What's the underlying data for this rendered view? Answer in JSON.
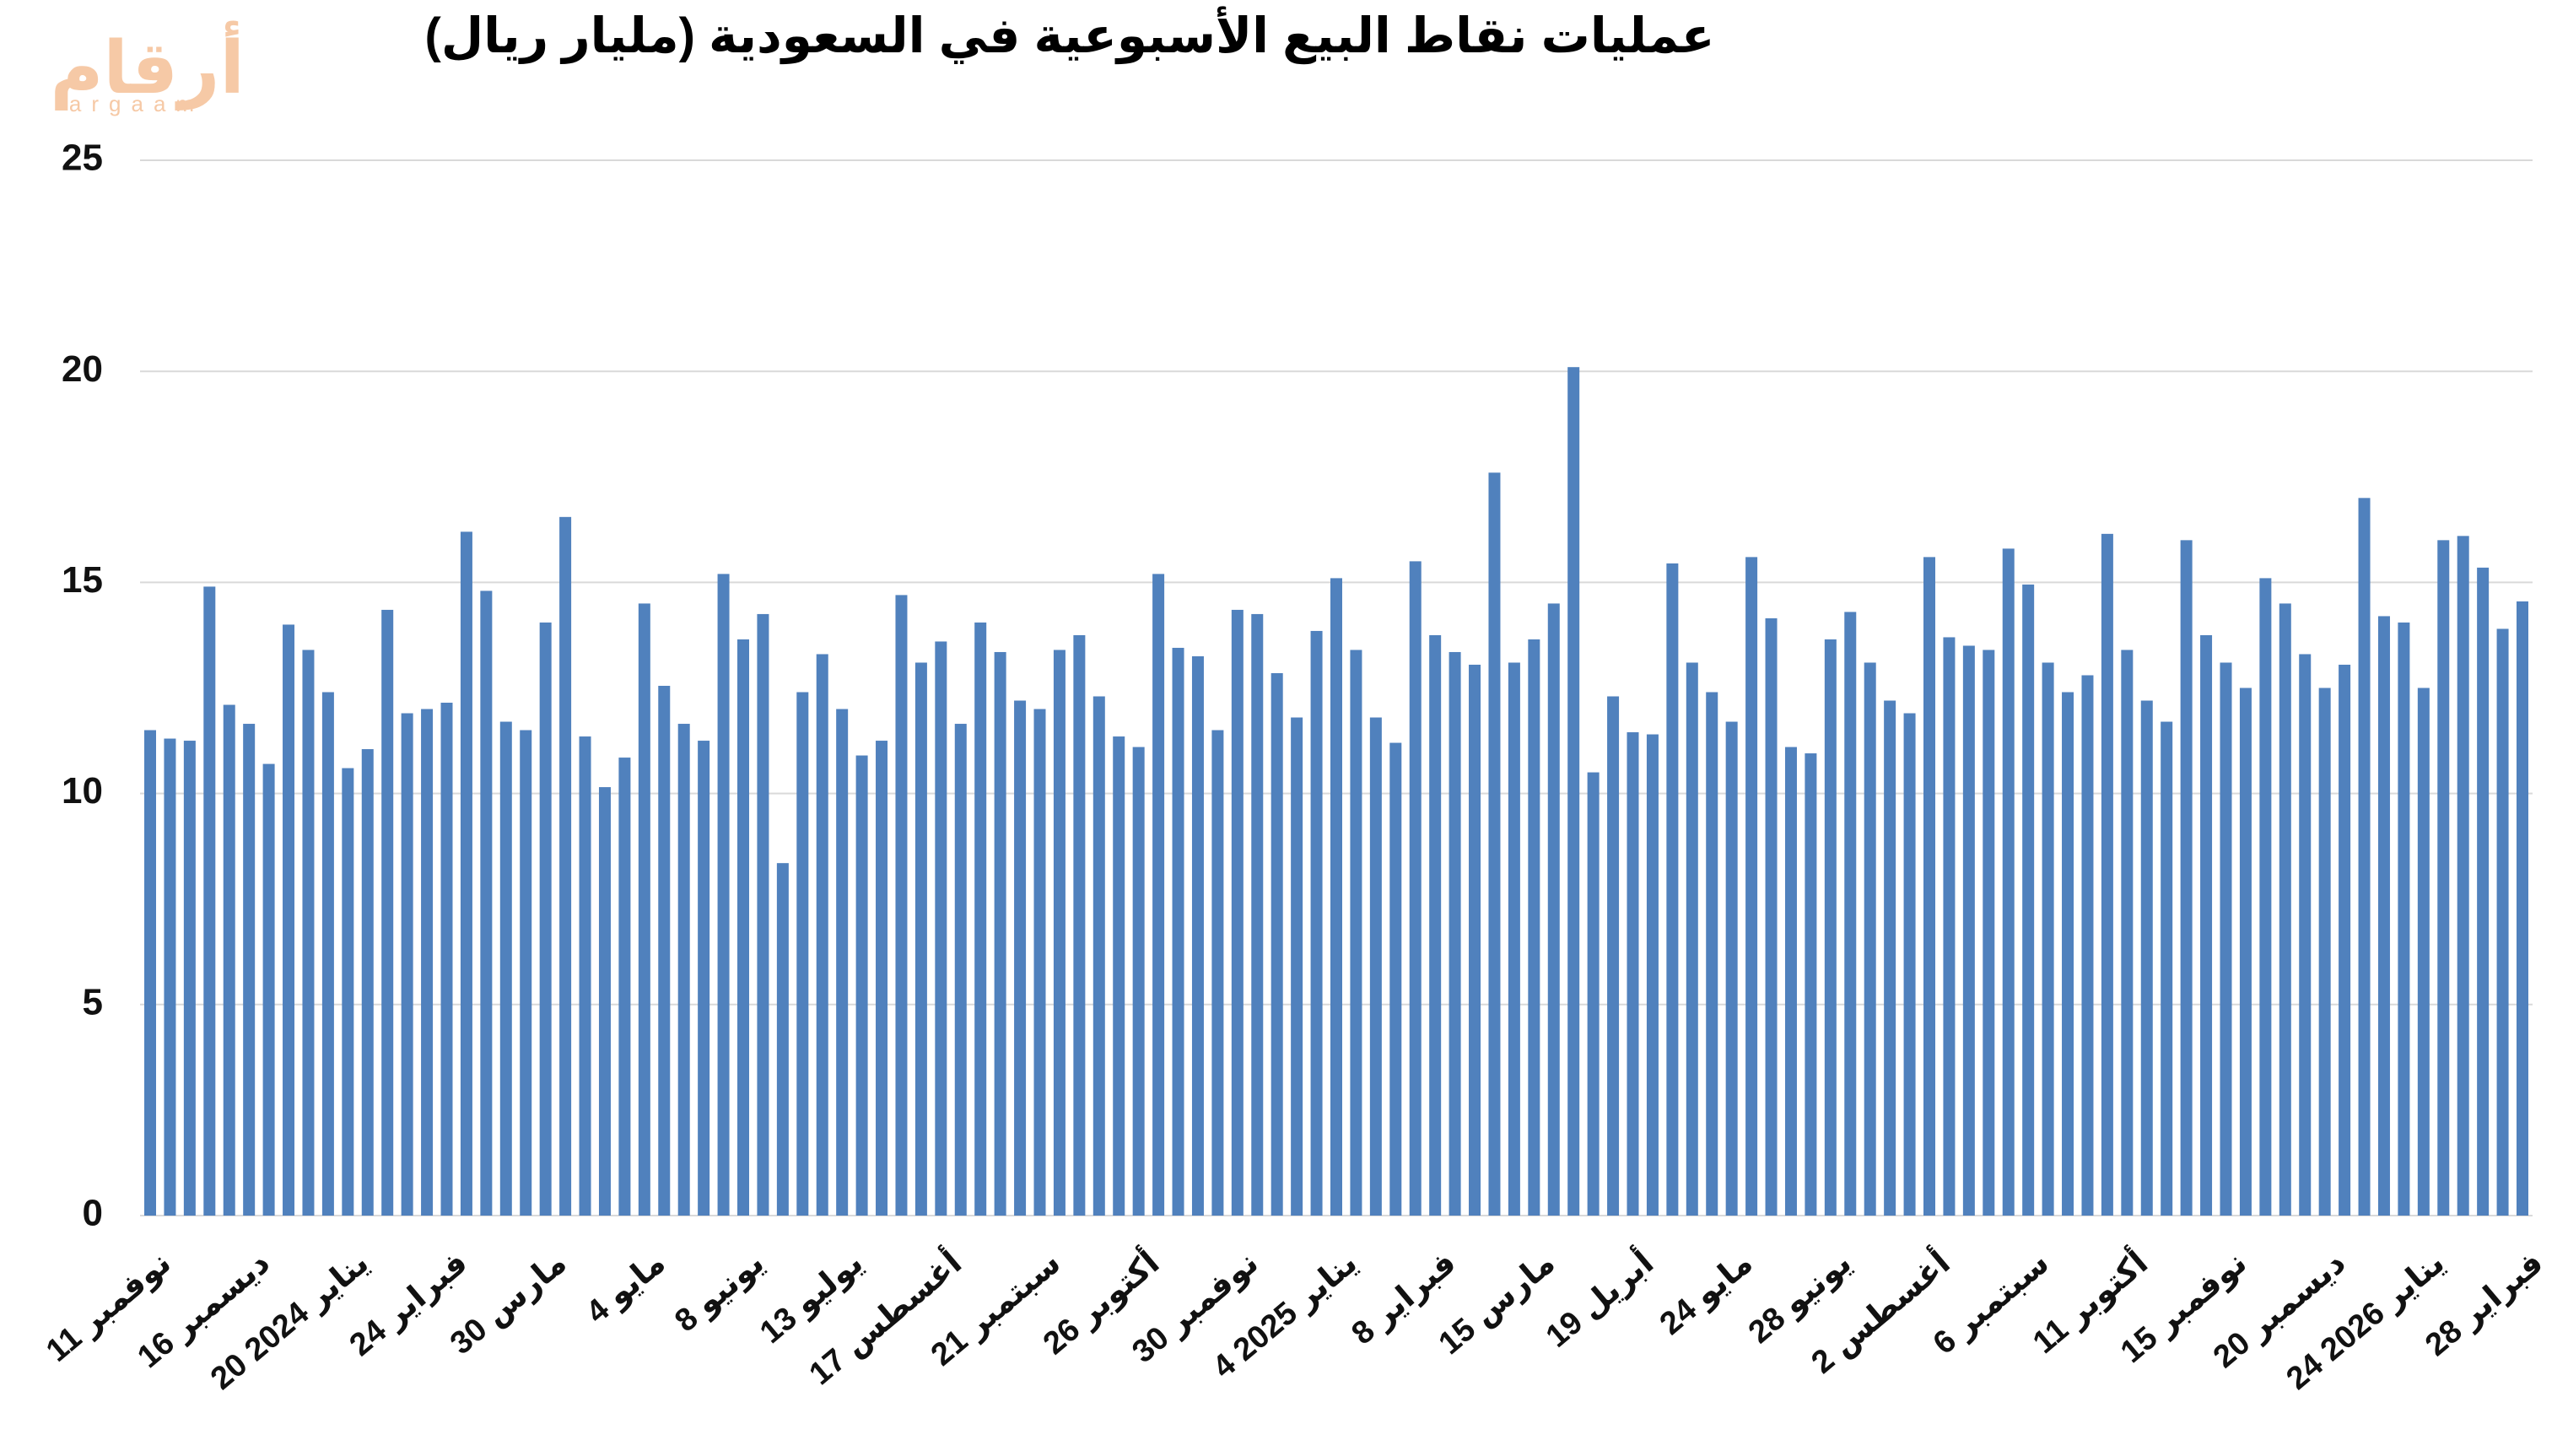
{
  "logo": {
    "text": "أرقام",
    "sub": "argaam"
  },
  "chart_data": {
    "type": "bar",
    "title": "عمليات نقاط البيع الأسبوعية في السعودية (مليار ريال)",
    "categories": [
      "11 نوفمبر",
      null,
      null,
      null,
      null,
      "16 ديسمبر",
      null,
      null,
      null,
      null,
      "20 يناير 2024",
      null,
      null,
      null,
      null,
      "24 فبراير",
      null,
      null,
      null,
      null,
      "30 مارس",
      null,
      null,
      null,
      null,
      "4 مايو",
      null,
      null,
      null,
      null,
      "8 يونيو",
      null,
      null,
      null,
      null,
      "13 يوليو",
      null,
      null,
      null,
      null,
      "17 أغسطس",
      null,
      null,
      null,
      null,
      "21 سبتمبر",
      null,
      null,
      null,
      null,
      "26 أكتوبر",
      null,
      null,
      null,
      null,
      "30 نوفمبر",
      null,
      null,
      null,
      null,
      "4 يناير 2025",
      null,
      null,
      null,
      null,
      "8 فبراير",
      null,
      null,
      null,
      null,
      "15 مارس",
      null,
      null,
      null,
      null,
      "19 أبريل",
      null,
      null,
      null,
      null,
      "24 مايو",
      null,
      null,
      null,
      null,
      "28 يونيو",
      null,
      null,
      null,
      null,
      "2 أغسطس",
      null,
      null,
      null,
      null,
      "6 سبتمبر",
      null,
      null,
      null,
      null,
      "11 أكتوبر",
      null,
      null,
      null,
      null,
      "15 نوفمبر",
      null,
      null,
      null,
      null,
      "20 ديسمبر",
      null,
      null,
      null,
      null,
      "24 يناير 2026",
      null,
      null,
      null,
      null,
      "28 فبراير"
    ],
    "values": [
      11.5,
      11.3,
      11.25,
      14.9,
      12.1,
      11.65,
      10.7,
      14.0,
      13.4,
      12.4,
      10.6,
      11.05,
      14.35,
      11.9,
      12.0,
      12.15,
      16.2,
      14.8,
      11.7,
      11.5,
      14.05,
      16.55,
      11.35,
      10.15,
      10.85,
      14.5,
      12.55,
      11.65,
      11.25,
      15.2,
      13.65,
      14.25,
      8.35,
      12.4,
      13.3,
      12.0,
      10.9,
      11.25,
      14.7,
      13.1,
      13.6,
      11.65,
      14.05,
      13.35,
      12.2,
      12.0,
      13.4,
      13.75,
      12.3,
      11.35,
      11.1,
      15.2,
      13.45,
      13.25,
      11.5,
      14.35,
      14.25,
      12.85,
      11.8,
      13.85,
      15.1,
      13.4,
      11.8,
      11.2,
      15.5,
      13.75,
      13.35,
      13.05,
      17.6,
      13.1,
      13.65,
      14.5,
      20.1,
      10.5,
      12.3,
      11.45,
      11.4,
      15.45,
      13.1,
      12.4,
      11.7,
      15.6,
      14.15,
      11.1,
      10.95,
      13.65,
      14.3,
      13.1,
      12.2,
      11.9,
      15.6,
      13.7,
      13.5,
      13.4,
      15.8,
      14.95,
      13.1,
      12.4,
      12.8,
      16.15,
      13.4,
      12.2,
      11.7,
      16.0,
      13.75,
      13.1,
      12.5,
      15.1,
      14.5,
      13.3,
      12.5,
      13.05,
      17.0,
      14.2,
      14.05,
      12.5,
      16.0,
      16.1,
      15.35,
      13.9,
      14.55
    ],
    "color": "#5081bd",
    "ylim": [
      0,
      25
    ],
    "yticks": [
      0,
      5,
      10,
      15,
      20,
      25
    ],
    "grid": true
  }
}
